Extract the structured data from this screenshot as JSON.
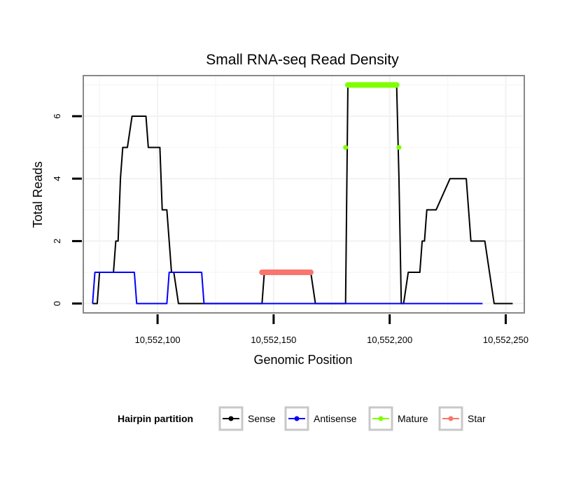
{
  "chart_data": {
    "type": "line",
    "title": "Small RNA-seq Read Density",
    "xlabel": "Genomic Position",
    "ylabel": "Total Reads",
    "xlim": [
      10552068,
      10552258
    ],
    "ylim": [
      -0.3,
      7.3
    ],
    "x_ticks": [
      10552100,
      10552150,
      10552200,
      10552250
    ],
    "x_tick_labels": [
      "10,552,100",
      "10,552,150",
      "10,552,200",
      "10,552,250"
    ],
    "y_ticks": [
      0,
      2,
      4,
      6
    ],
    "y_tick_labels": [
      "0",
      "2",
      "4",
      "6"
    ],
    "grid": true,
    "legend": {
      "title": "Hairpin partition",
      "position": "bottom",
      "entries": [
        "Sense",
        "Antisense",
        "Mature",
        "Star"
      ]
    },
    "series": [
      {
        "name": "Sense",
        "color": "#000000",
        "x": [
          10552072,
          10552074,
          10552075,
          10552078,
          10552080,
          10552081,
          10552082,
          10552083,
          10552084,
          10552085,
          10552087,
          10552089,
          10552095,
          10552096,
          10552101,
          10552102,
          10552103,
          10552104,
          10552106,
          10552107,
          10552109,
          10552110,
          10552112,
          10552113,
          10552131,
          10552132,
          10552145,
          10552146,
          10552166,
          10552168,
          10552181,
          10552182,
          10552203,
          10552204,
          10552205,
          10552206,
          10552208,
          10552209,
          10552213,
          10552214,
          10552215,
          10552216,
          10552217,
          10552218,
          10552220,
          10552226,
          10552231,
          10552233,
          10552235,
          10552239,
          10552241,
          10552245,
          10552253
        ],
        "values": [
          0,
          0,
          1,
          1,
          1,
          1,
          2,
          2,
          4,
          5,
          5,
          6,
          6,
          5,
          5,
          3,
          3,
          3,
          1,
          1,
          0,
          0,
          0,
          0,
          0,
          0,
          0,
          1,
          1,
          0,
          0,
          7,
          7,
          4,
          0,
          0,
          1,
          1,
          1,
          2,
          2,
          3,
          3,
          3,
          3,
          4,
          4,
          4,
          2,
          2,
          2,
          0,
          0
        ]
      },
      {
        "name": "Antisense",
        "color": "#0000ff",
        "x": [
          10552072,
          10552073,
          10552090,
          10552091,
          10552094,
          10552104,
          10552105,
          10552119,
          10552120,
          10552240
        ],
        "values": [
          0,
          1,
          1,
          0,
          0,
          0,
          1,
          1,
          0,
          0
        ]
      },
      {
        "name": "Mature",
        "color": "#7fff00",
        "x": [
          10552181,
          10552182,
          10552203,
          10552204
        ],
        "values": [
          5,
          7,
          7,
          5
        ]
      },
      {
        "name": "Star",
        "color": "#f8766d",
        "x": [
          10552145,
          10552166
        ],
        "values": [
          1,
          1
        ]
      }
    ]
  }
}
